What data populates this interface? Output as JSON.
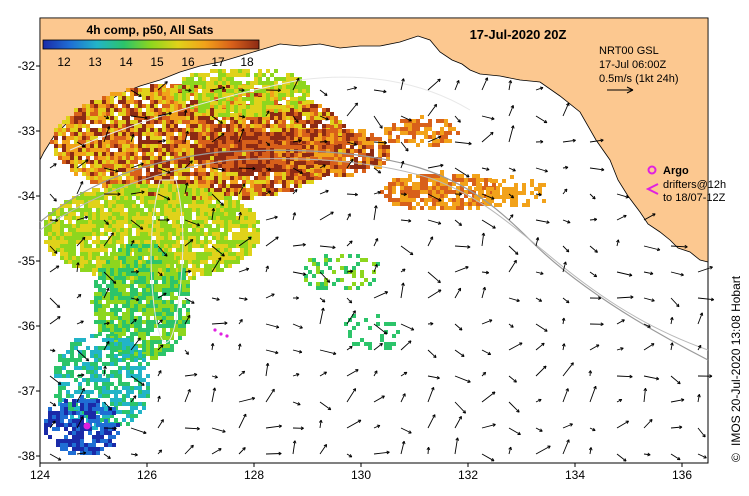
{
  "map": {
    "colorbar_title": "4h comp, p50, All Sats",
    "colorbar_ticks": [
      "12",
      "13",
      "14",
      "15",
      "16",
      "17",
      "18"
    ],
    "colorbar_colors": [
      "#1a2aa8",
      "#1f6ed4",
      "#22b4c8",
      "#2cc46a",
      "#8ed61e",
      "#e0d21a",
      "#f2a21a",
      "#d8601a",
      "#8c2a14"
    ],
    "datetime_title": "17-Jul-2020 20Z",
    "current_model": "NRT00 GSL",
    "current_time": "17-Jul 06:00Z",
    "scale_label": "0.5m/s (1kt 24h)",
    "legend_argo": "Argo",
    "legend_drifters": "drifters@12h",
    "legend_drifters_to": "to 18/07-12Z",
    "x_ticks": [
      "124",
      "126",
      "128",
      "130",
      "132",
      "134",
      "136"
    ],
    "y_ticks": [
      "-32",
      "-33",
      "-34",
      "-35",
      "-36",
      "-37",
      "-38"
    ],
    "credit_symbol": "©",
    "credit": "IMOS 20-Jul-2020 13:08 Hobart",
    "land_color": "#fcc890",
    "argo_color": "#e020e0"
  },
  "chart_data": {
    "type": "heatmap",
    "title": "17-Jul-2020 20Z",
    "colorbar_label": "4h comp, p50, All Sats",
    "colorbar_range": [
      11.5,
      18.5
    ],
    "xlim": [
      124,
      136.5
    ],
    "ylim": [
      -38.1,
      -31.4
    ],
    "x_ticks": [
      124,
      126,
      128,
      130,
      132,
      134,
      136
    ],
    "y_ticks": [
      -32,
      -33,
      -34,
      -35,
      -36,
      -37,
      -38
    ]
  }
}
